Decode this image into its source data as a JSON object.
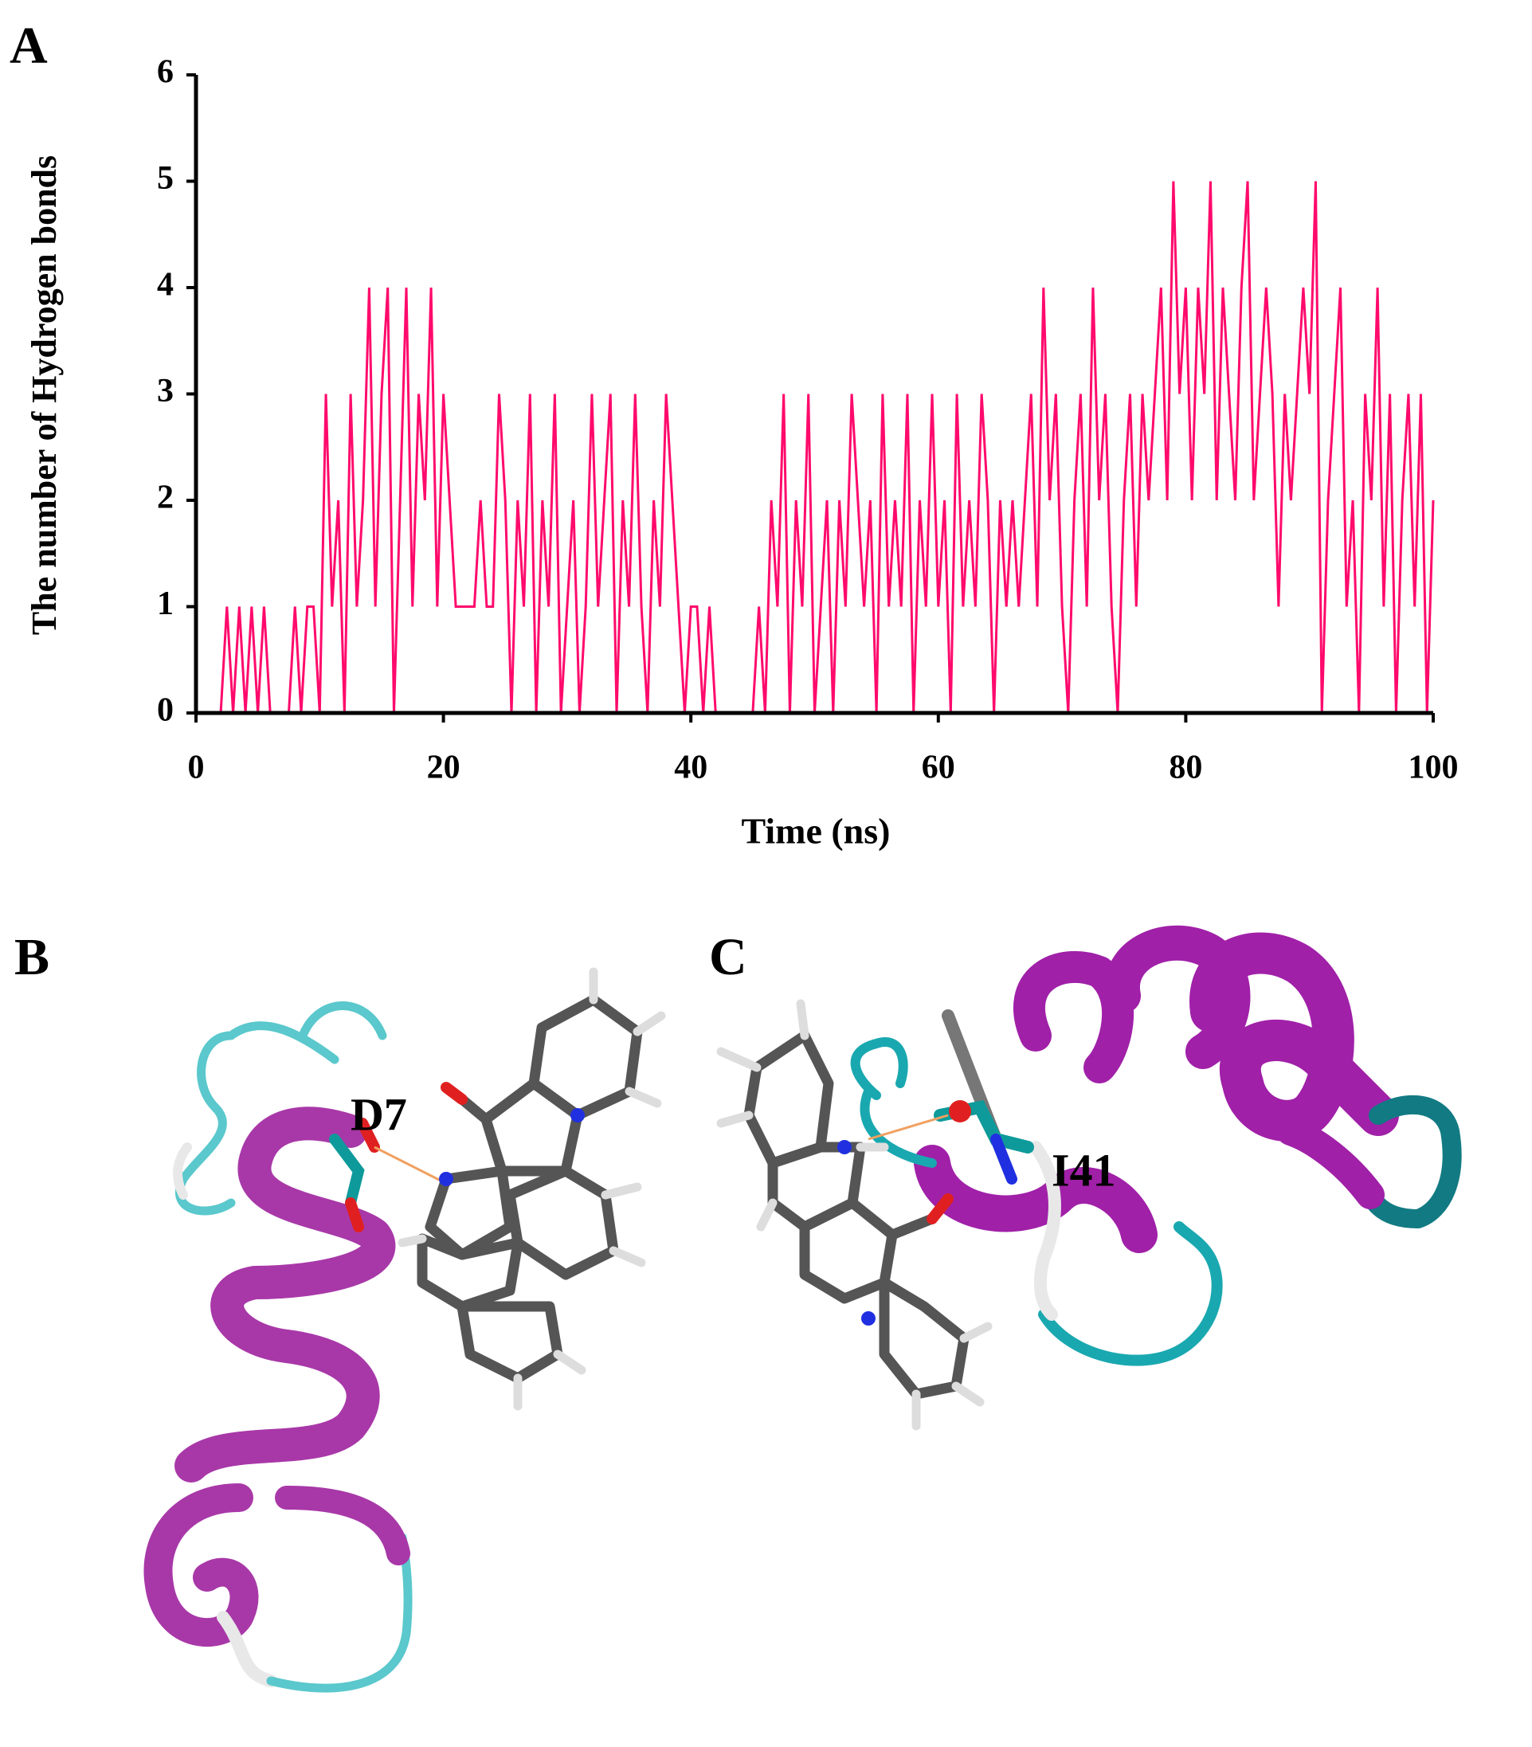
{
  "chart_data": {
    "type": "line",
    "panel_label": "A",
    "ylabel": "The number of Hydrogen bonds",
    "xlabel": "Time (ns)",
    "x": [
      0,
      0.5,
      1,
      1.5,
      2,
      2.5,
      3,
      3.5,
      4,
      4.5,
      5,
      5.5,
      6,
      6.5,
      7,
      7.5,
      8,
      8.5,
      9,
      9.5,
      10,
      10.5,
      11,
      11.5,
      12,
      12.5,
      13,
      13.5,
      14,
      14.5,
      15,
      15.5,
      16,
      16.5,
      17,
      17.5,
      18,
      18.5,
      19,
      19.5,
      20,
      20.5,
      21,
      21.5,
      22,
      22.5,
      23,
      23.5,
      24,
      24.5,
      25,
      25.5,
      26,
      26.5,
      27,
      27.5,
      28,
      28.5,
      29,
      29.5,
      30,
      30.5,
      31,
      31.5,
      32,
      32.5,
      33,
      33.5,
      34,
      34.5,
      35,
      35.5,
      36,
      36.5,
      37,
      37.5,
      38,
      38.5,
      39,
      39.5,
      40,
      40.5,
      41,
      41.5,
      42,
      42.5,
      43,
      43.5,
      44,
      44.5,
      45,
      45.5,
      46,
      46.5,
      47,
      47.5,
      48,
      48.5,
      49,
      49.5,
      50,
      50.5,
      51,
      51.5,
      52,
      52.5,
      53,
      53.5,
      54,
      54.5,
      55,
      55.5,
      56,
      56.5,
      57,
      57.5,
      58,
      58.5,
      59,
      59.5,
      60,
      60.5,
      61,
      61.5,
      62,
      62.5,
      63,
      63.5,
      64,
      64.5,
      65,
      65.5,
      66,
      66.5,
      67,
      67.5,
      68,
      68.5,
      69,
      69.5,
      70,
      70.5,
      71,
      71.5,
      72,
      72.5,
      73,
      73.5,
      74,
      74.5,
      75,
      75.5,
      76,
      76.5,
      77,
      77.5,
      78,
      78.5,
      79,
      79.5,
      80,
      80.5,
      81,
      81.5,
      82,
      82.5,
      83,
      83.5,
      84,
      84.5,
      85,
      85.5,
      86,
      86.5,
      87,
      87.5,
      88,
      88.5,
      89,
      89.5,
      90,
      90.5,
      91,
      91.5,
      92,
      92.5,
      93,
      93.5,
      94,
      94.5,
      95,
      95.5,
      96,
      96.5,
      97,
      97.5,
      98,
      98.5,
      99,
      99.5,
      100
    ],
    "values": [
      0,
      0,
      0,
      0,
      0,
      1,
      0,
      1,
      0,
      1,
      0,
      1,
      0,
      0,
      0,
      0,
      1,
      0,
      1,
      1,
      0,
      3,
      1,
      2,
      0,
      3,
      1,
      2,
      4,
      1,
      3,
      4,
      0,
      2,
      4,
      1,
      3,
      2,
      4,
      1,
      3,
      2,
      1,
      1,
      1,
      1,
      2,
      1,
      1,
      3,
      2,
      0,
      2,
      1,
      3,
      0,
      2,
      1,
      3,
      0,
      1,
      2,
      0,
      1,
      3,
      1,
      2,
      3,
      0,
      2,
      1,
      3,
      1,
      0,
      2,
      1,
      3,
      2,
      1,
      0,
      1,
      1,
      0,
      1,
      0,
      0,
      0,
      0,
      0,
      0,
      0,
      1,
      0,
      2,
      1,
      3,
      0,
      2,
      1,
      3,
      0,
      1,
      2,
      0,
      2,
      1,
      3,
      2,
      1,
      2,
      0,
      3,
      1,
      2,
      1,
      3,
      0,
      2,
      1,
      3,
      1,
      2,
      0,
      3,
      1,
      2,
      1,
      3,
      2,
      0,
      2,
      1,
      2,
      1,
      2,
      3,
      1,
      4,
      2,
      3,
      1,
      0,
      2,
      3,
      1,
      4,
      2,
      3,
      1,
      0,
      2,
      3,
      1,
      3,
      2,
      3,
      4,
      2,
      5,
      3,
      4,
      2,
      4,
      3,
      5,
      2,
      4,
      3,
      2,
      4,
      5,
      2,
      3,
      4,
      3,
      1,
      3,
      2,
      3,
      4,
      3,
      5,
      0,
      2,
      3,
      4,
      1,
      2,
      0,
      3,
      2,
      4,
      1,
      3,
      0,
      2,
      3,
      1,
      3,
      0,
      2
    ],
    "color": "#ff0a6c",
    "xlim": [
      0,
      100
    ],
    "xticks": [
      0,
      20,
      40,
      60,
      80,
      100
    ],
    "ylim": [
      0,
      6
    ],
    "yticks": [
      0,
      1,
      2,
      3,
      4,
      5,
      6
    ]
  },
  "panels": {
    "b": {
      "label": "B",
      "residue": "D7"
    },
    "c": {
      "label": "C",
      "residue": "I41"
    }
  }
}
